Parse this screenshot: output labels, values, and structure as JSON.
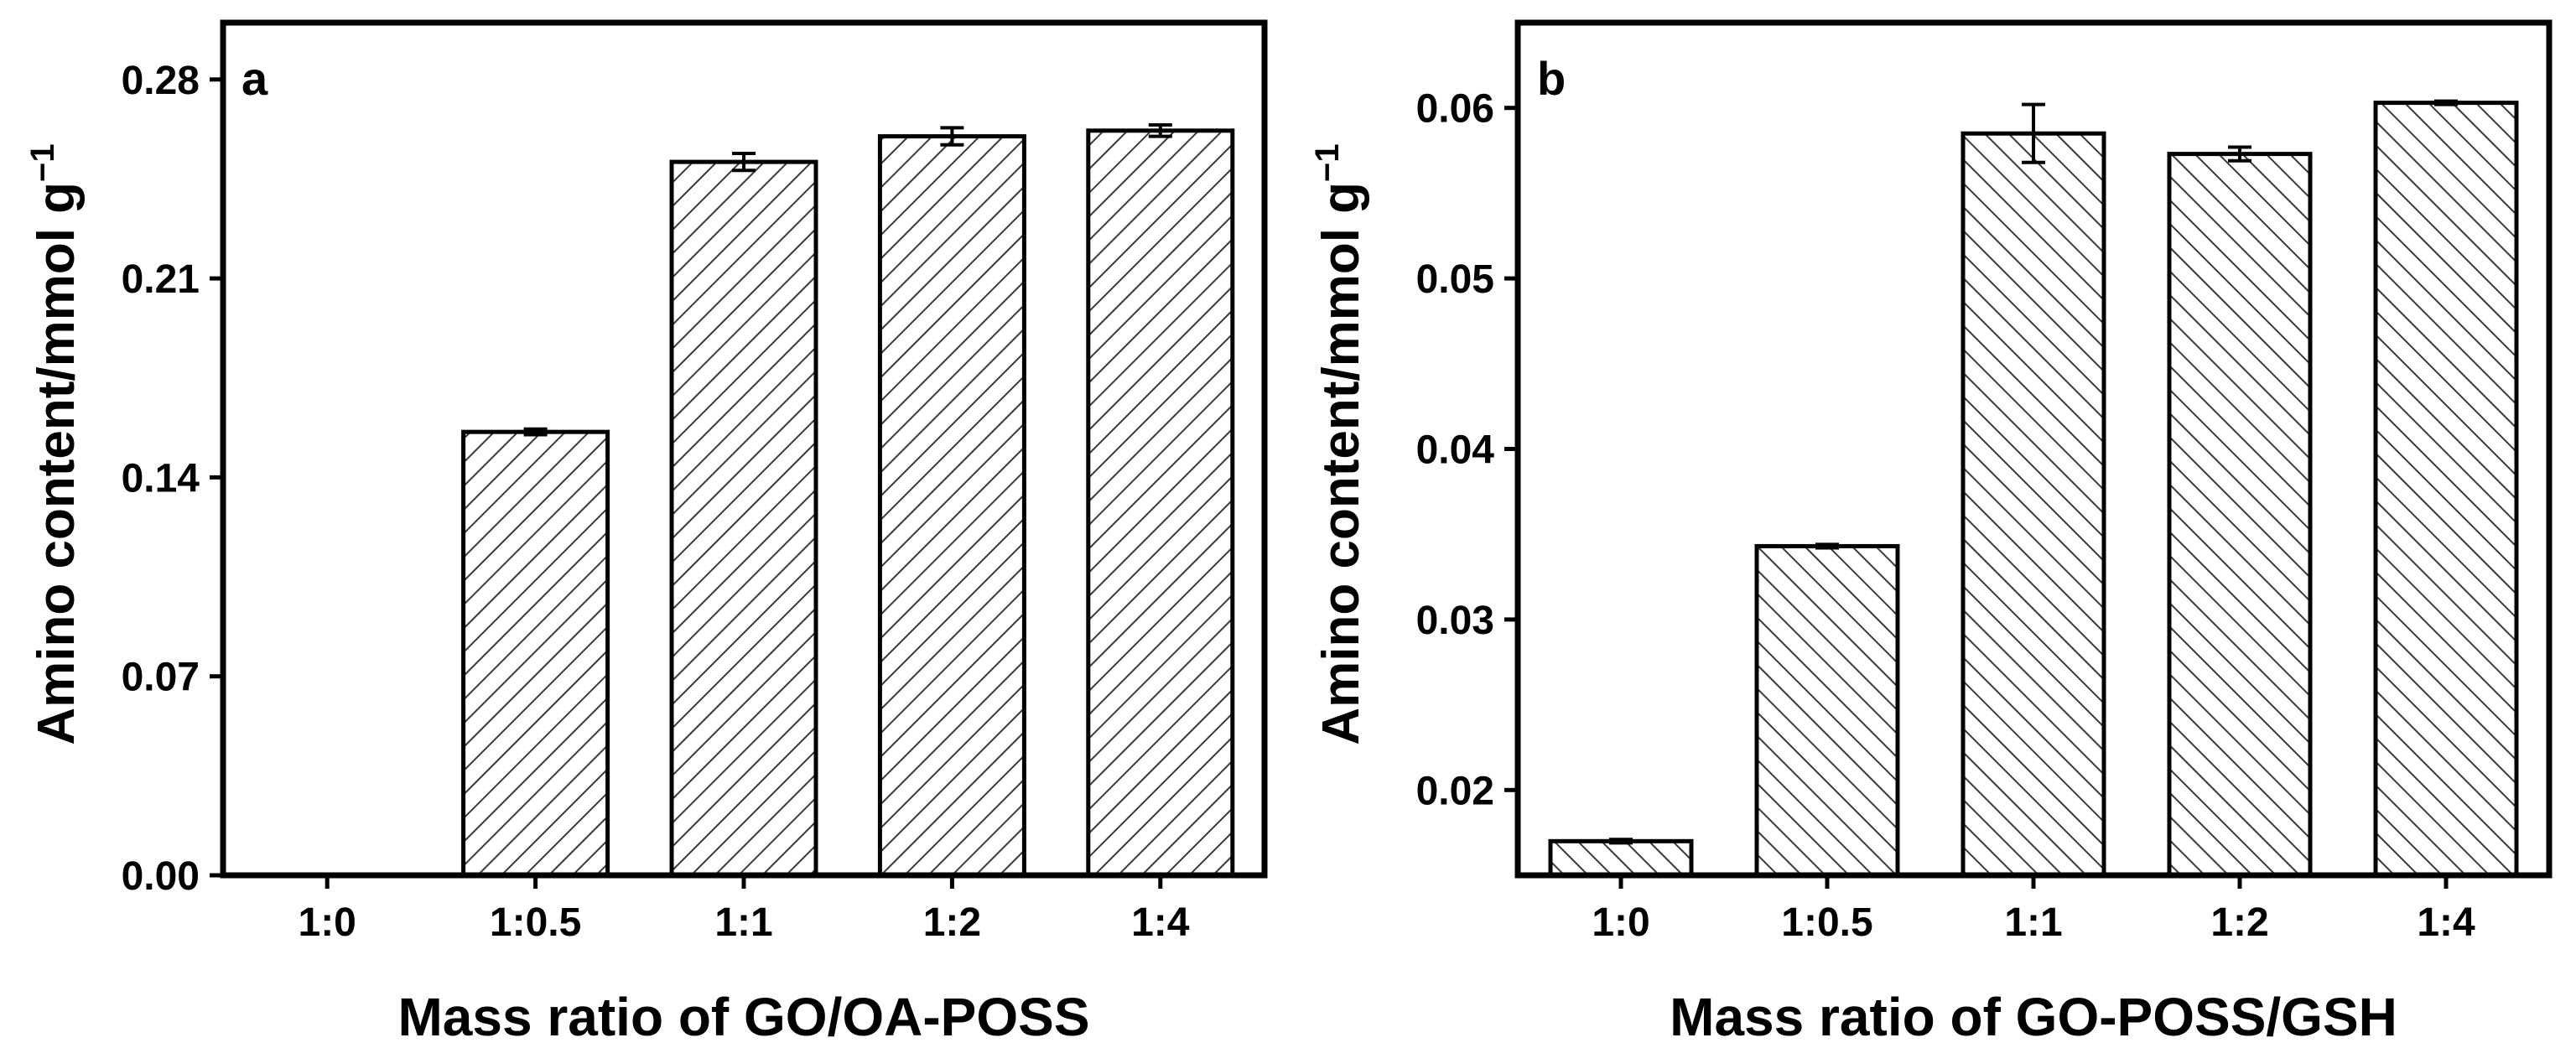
{
  "chart_data": [
    {
      "type": "bar",
      "panel": "a",
      "categories": [
        "1:0",
        "1:0.5",
        "1:1",
        "1:2",
        "1:4"
      ],
      "values": [
        0.0,
        0.156,
        0.251,
        0.26,
        0.262
      ],
      "errors": [
        0.0,
        0.001,
        0.003,
        0.003,
        0.002
      ],
      "xlabel": "Mass ratio of GO/OA-POSS",
      "ylabel": "Amino content/mmol g",
      "ylabel_sup": "−1",
      "ylim": [
        0,
        0.3
      ],
      "yticks": [
        0.0,
        0.07,
        0.14,
        0.21,
        0.28
      ],
      "ytick_labels": [
        "0.00",
        "0.07",
        "0.14",
        "0.21",
        "0.28"
      ],
      "hatch": "forward"
    },
    {
      "type": "bar",
      "panel": "b",
      "categories": [
        "1:0",
        "1:0.5",
        "1:1",
        "1:2",
        "1:4"
      ],
      "values": [
        0.017,
        0.0343,
        0.0585,
        0.0573,
        0.0603
      ],
      "errors": [
        0.0001,
        0.0001,
        0.0017,
        0.0004,
        0.0001
      ],
      "xlabel": "Mass ratio of GO-POSS/GSH",
      "ylabel": "Amino content/mmol g",
      "ylabel_sup": "−1",
      "ylim": [
        0.015,
        0.065
      ],
      "yticks": [
        0.02,
        0.03,
        0.04,
        0.05,
        0.06
      ],
      "ytick_labels": [
        "0.02",
        "0.03",
        "0.04",
        "0.05",
        "0.06"
      ],
      "hatch": "backward"
    }
  ]
}
